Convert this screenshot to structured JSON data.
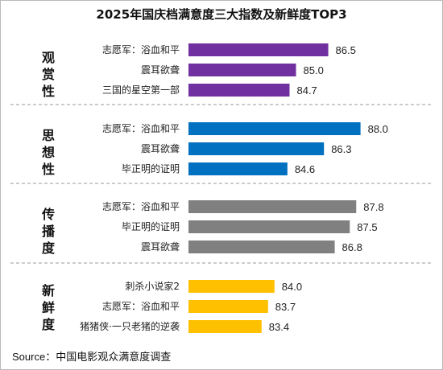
{
  "chart_data": {
    "type": "bar",
    "orientation": "horizontal",
    "title": "2025年国庆档满意度三大指数及新鲜度TOP3",
    "source_prefix": "Source：",
    "source_text": "中国电影观众满意度调查",
    "value_range": [
      80,
      90
    ],
    "groups": [
      {
        "name": "观赏性",
        "color": "#7030a0",
        "items": [
          {
            "label": "志愿军：浴血和平",
            "value": 86.5,
            "value_text": "86.5"
          },
          {
            "label": "震耳欲聋",
            "value": 85.0,
            "value_text": "85.0"
          },
          {
            "label": "三国的星空第一部",
            "value": 84.7,
            "value_text": "84.7"
          }
        ]
      },
      {
        "name": "思想性",
        "color": "#0070c0",
        "items": [
          {
            "label": "志愿军：浴血和平",
            "value": 88.0,
            "value_text": "88.0"
          },
          {
            "label": "震耳欲聋",
            "value": 86.3,
            "value_text": "86.3"
          },
          {
            "label": "毕正明的证明",
            "value": 84.6,
            "value_text": "84.6"
          }
        ]
      },
      {
        "name": "传播度",
        "color": "#808080",
        "items": [
          {
            "label": "志愿军：浴血和平",
            "value": 87.8,
            "value_text": "87.8"
          },
          {
            "label": "毕正明的证明",
            "value": 87.5,
            "value_text": "87.5"
          },
          {
            "label": "震耳欲聋",
            "value": 86.8,
            "value_text": "86.8"
          }
        ]
      },
      {
        "name": "新鲜度",
        "color": "#ffc000",
        "items": [
          {
            "label": "刺杀小说家2",
            "value": 84.0,
            "value_text": "84.0"
          },
          {
            "label": "志愿军：浴血和平",
            "value": 83.7,
            "value_text": "83.7"
          },
          {
            "label": "猪猪侠·一只老猪的逆袭",
            "value": 83.4,
            "value_text": "83.4"
          }
        ]
      }
    ]
  }
}
